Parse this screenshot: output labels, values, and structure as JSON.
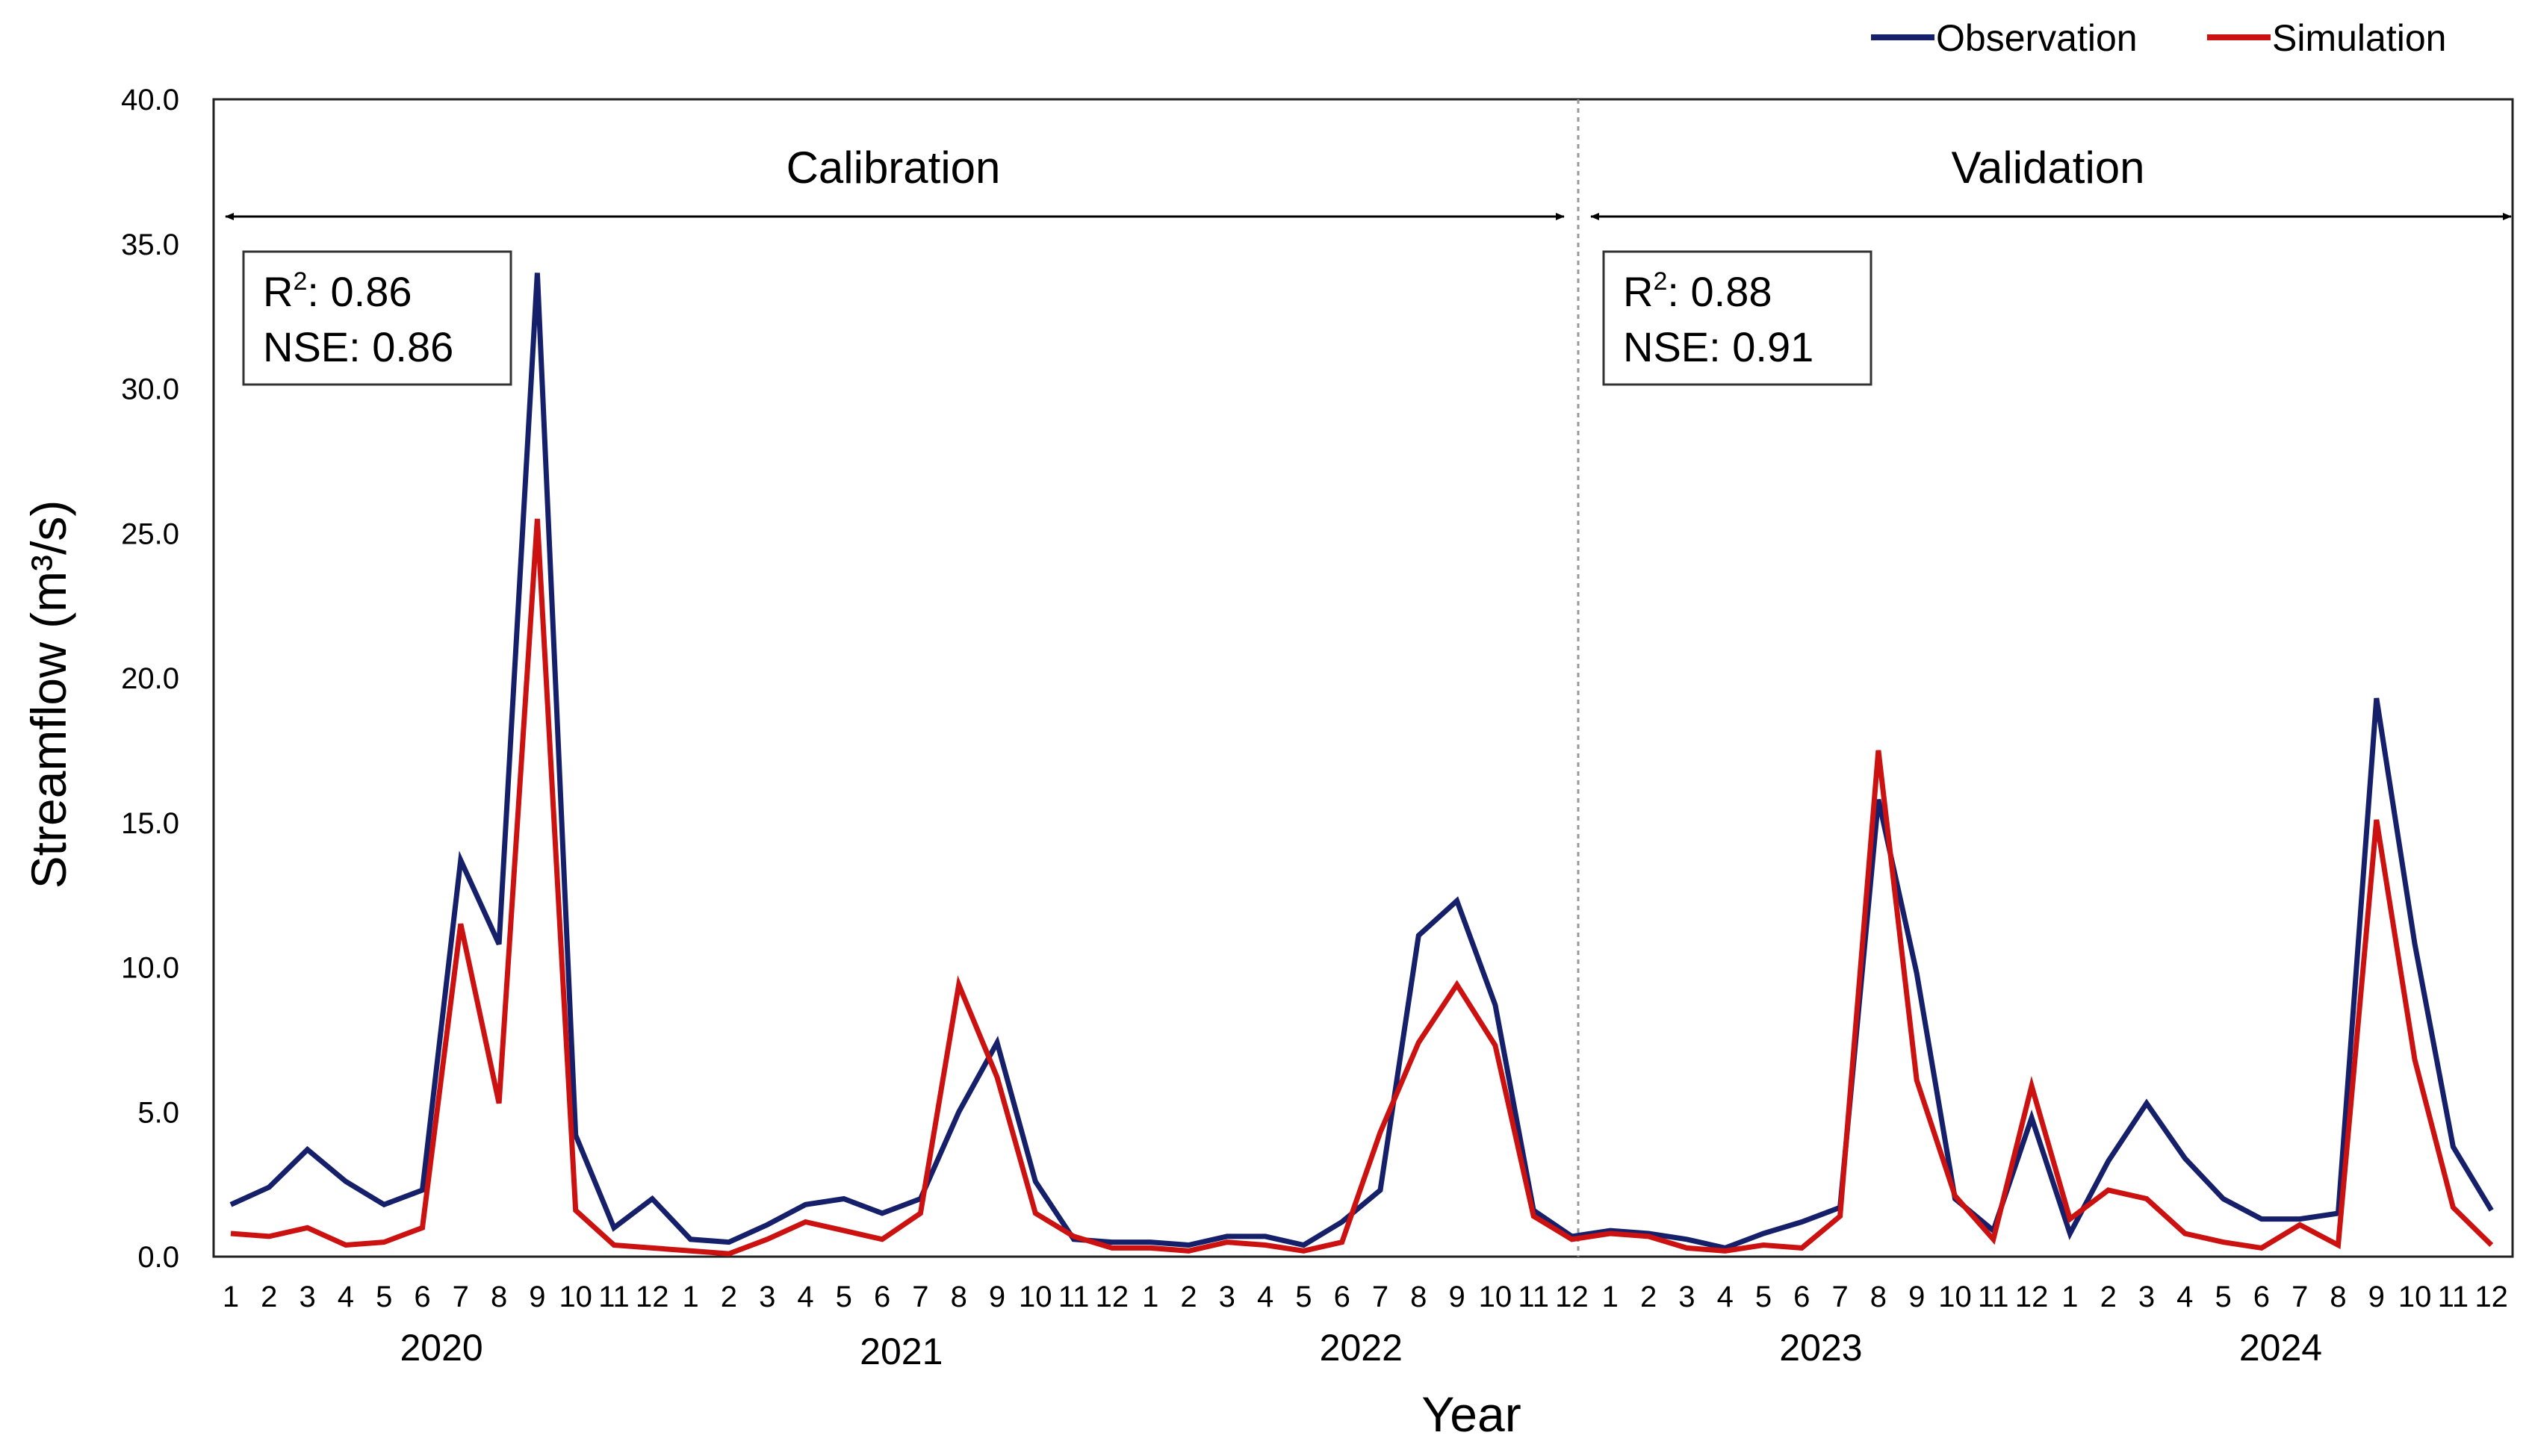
{
  "chart_data": {
    "type": "line",
    "title": "",
    "xlabel": "Year",
    "ylabel": "Streamflow (m³/s)",
    "ylim": [
      0,
      40
    ],
    "yticks": [
      "0.0",
      "5.0",
      "10.0",
      "15.0",
      "20.0",
      "25.0",
      "30.0",
      "35.0",
      "40.0"
    ],
    "grid": false,
    "legend_position": "top-right",
    "years": [
      "2020",
      "2021",
      "2022",
      "2023",
      "2024"
    ],
    "months": [
      "1",
      "2",
      "3",
      "4",
      "5",
      "6",
      "7",
      "8",
      "9",
      "10",
      "11",
      "12"
    ],
    "periods": [
      {
        "label": "Calibration",
        "r2_label": "R",
        "r2_sup": "2",
        "r2_value": ": 0.86",
        "nse": "NSE: 0.86"
      },
      {
        "label": "Validation",
        "r2_label": "R",
        "r2_sup": "2",
        "r2_value": ": 0.88",
        "nse": "NSE: 0.91"
      }
    ],
    "series": [
      {
        "name": "Observation",
        "color": "#16206a",
        "values": [
          1.8,
          2.4,
          3.7,
          2.6,
          1.8,
          2.3,
          13.7,
          10.8,
          34.0,
          4.2,
          1.0,
          2.0,
          0.6,
          0.5,
          1.1,
          1.8,
          2.0,
          1.5,
          2.0,
          5.0,
          7.4,
          2.6,
          0.6,
          0.5,
          0.5,
          0.4,
          0.7,
          0.7,
          0.4,
          1.2,
          2.3,
          11.1,
          12.3,
          8.7,
          1.6,
          0.7,
          0.9,
          0.8,
          0.6,
          0.3,
          0.8,
          1.2,
          1.7,
          15.8,
          9.8,
          2.0,
          0.9,
          4.8,
          0.8,
          3.3,
          5.3,
          3.4,
          2.0,
          1.3,
          1.3,
          1.5,
          19.3,
          10.8,
          3.8,
          1.6
        ]
      },
      {
        "name": "Simulation",
        "color": "#cc1111",
        "values": [
          0.8,
          0.7,
          1.0,
          0.4,
          0.5,
          1.0,
          11.5,
          5.3,
          25.5,
          1.6,
          0.4,
          0.3,
          0.2,
          0.1,
          0.6,
          1.2,
          0.9,
          0.6,
          1.5,
          9.4,
          6.2,
          1.5,
          0.7,
          0.3,
          0.3,
          0.2,
          0.5,
          0.4,
          0.2,
          0.5,
          4.3,
          7.4,
          9.4,
          7.3,
          1.4,
          0.6,
          0.8,
          0.7,
          0.3,
          0.2,
          0.4,
          0.3,
          1.4,
          17.5,
          6.1,
          2.1,
          0.6,
          5.9,
          1.3,
          2.3,
          2.0,
          0.8,
          0.5,
          0.3,
          1.1,
          0.4,
          15.1,
          6.8,
          1.7,
          0.4
        ]
      }
    ]
  }
}
